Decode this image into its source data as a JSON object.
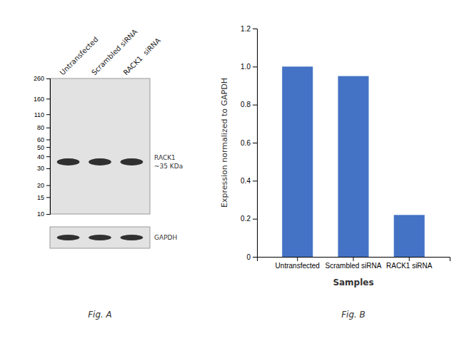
{
  "chart_data": [
    {
      "type": "blot",
      "title": "Fig. A",
      "categories": [
        "Untransfected",
        "Scrambled siRNA",
        "RACK1  siRNA"
      ],
      "log": "y",
      "ylim": [
        10,
        260
      ],
      "yticks": [
        260,
        160,
        110,
        80,
        60,
        50,
        40,
        30,
        20,
        15,
        10
      ],
      "series": [
        {
          "name": "RACK1\n~35 KDa",
          "values": [
            35,
            35,
            35
          ]
        }
      ],
      "annotations": [
        "GAPDH"
      ]
    },
    {
      "type": "bar",
      "title": "Fig. B",
      "categories": [
        "Untransfected",
        "Scrambled siRNA",
        "RACK1 siRNA"
      ],
      "values": [
        1.0,
        0.95,
        0.22
      ],
      "color": "#4472C4",
      "ylim": [
        0,
        1.2
      ],
      "yticks": [
        0,
        0.2,
        0.4,
        0.6,
        0.8,
        {
          "value": 1.0,
          "label": "1.0"
        },
        1.2
      ],
      "xlabel": "Samples",
      "ylabel": "Expression normalized to GAPDH",
      "grid": false
    }
  ]
}
